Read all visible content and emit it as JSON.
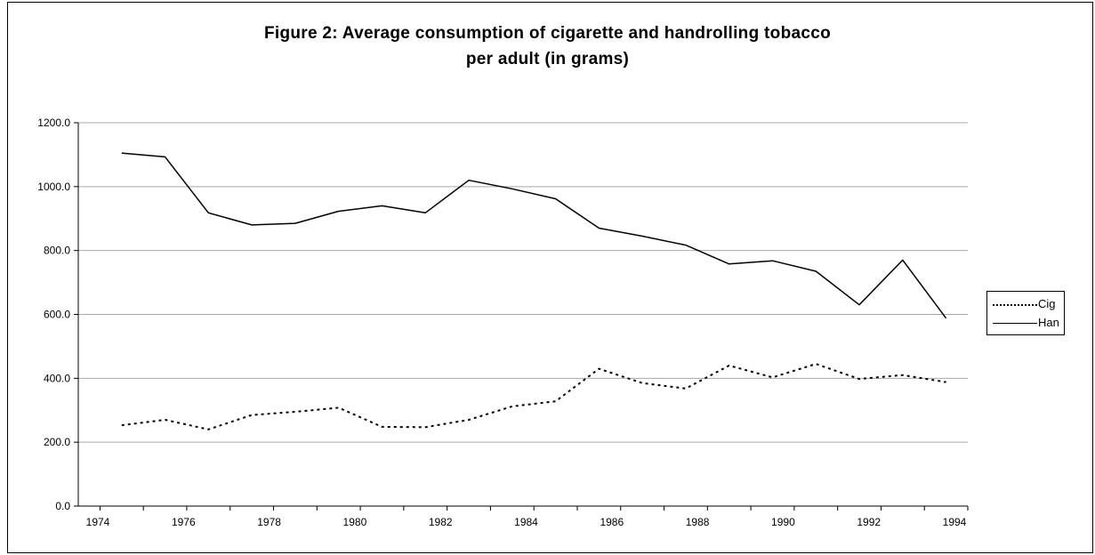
{
  "chart_data": {
    "type": "line",
    "title": "Figure 2: Average consumption of cigarette and handrolling tobacco",
    "subtitle": "per adult (in grams)",
    "xlabel": "",
    "ylabel": "",
    "x": [
      1975,
      1976,
      1977,
      1978,
      1979,
      1980,
      1981,
      1982,
      1983,
      1984,
      1985,
      1986,
      1987,
      1988,
      1989,
      1990,
      1991,
      1992,
      1993,
      1994
    ],
    "x_tick_labels": [
      "1974",
      "1976",
      "1978",
      "1980",
      "1982",
      "1984",
      "1986",
      "1988",
      "1990",
      "1992",
      "1994"
    ],
    "y_tick_labels": [
      "0.0",
      "200.0",
      "400.0",
      "600.0",
      "800.0",
      "1000.0",
      "1200.0"
    ],
    "ylim": [
      0,
      1200
    ],
    "grid": "horizontal",
    "legend_position": "right",
    "series": [
      {
        "name": "Cig",
        "style": "dotted",
        "color": "#000000",
        "values": [
          253,
          270,
          240,
          285,
          295,
          308,
          248,
          247,
          270,
          312,
          328,
          430,
          385,
          368,
          440,
          403,
          445,
          398,
          410,
          388
        ]
      },
      {
        "name": "Han",
        "style": "solid",
        "color": "#000000",
        "values": [
          1105,
          1093,
          918,
          880,
          885,
          923,
          940,
          918,
          1020,
          993,
          962,
          870,
          845,
          817,
          758,
          768,
          735,
          630,
          770,
          588
        ]
      }
    ]
  }
}
